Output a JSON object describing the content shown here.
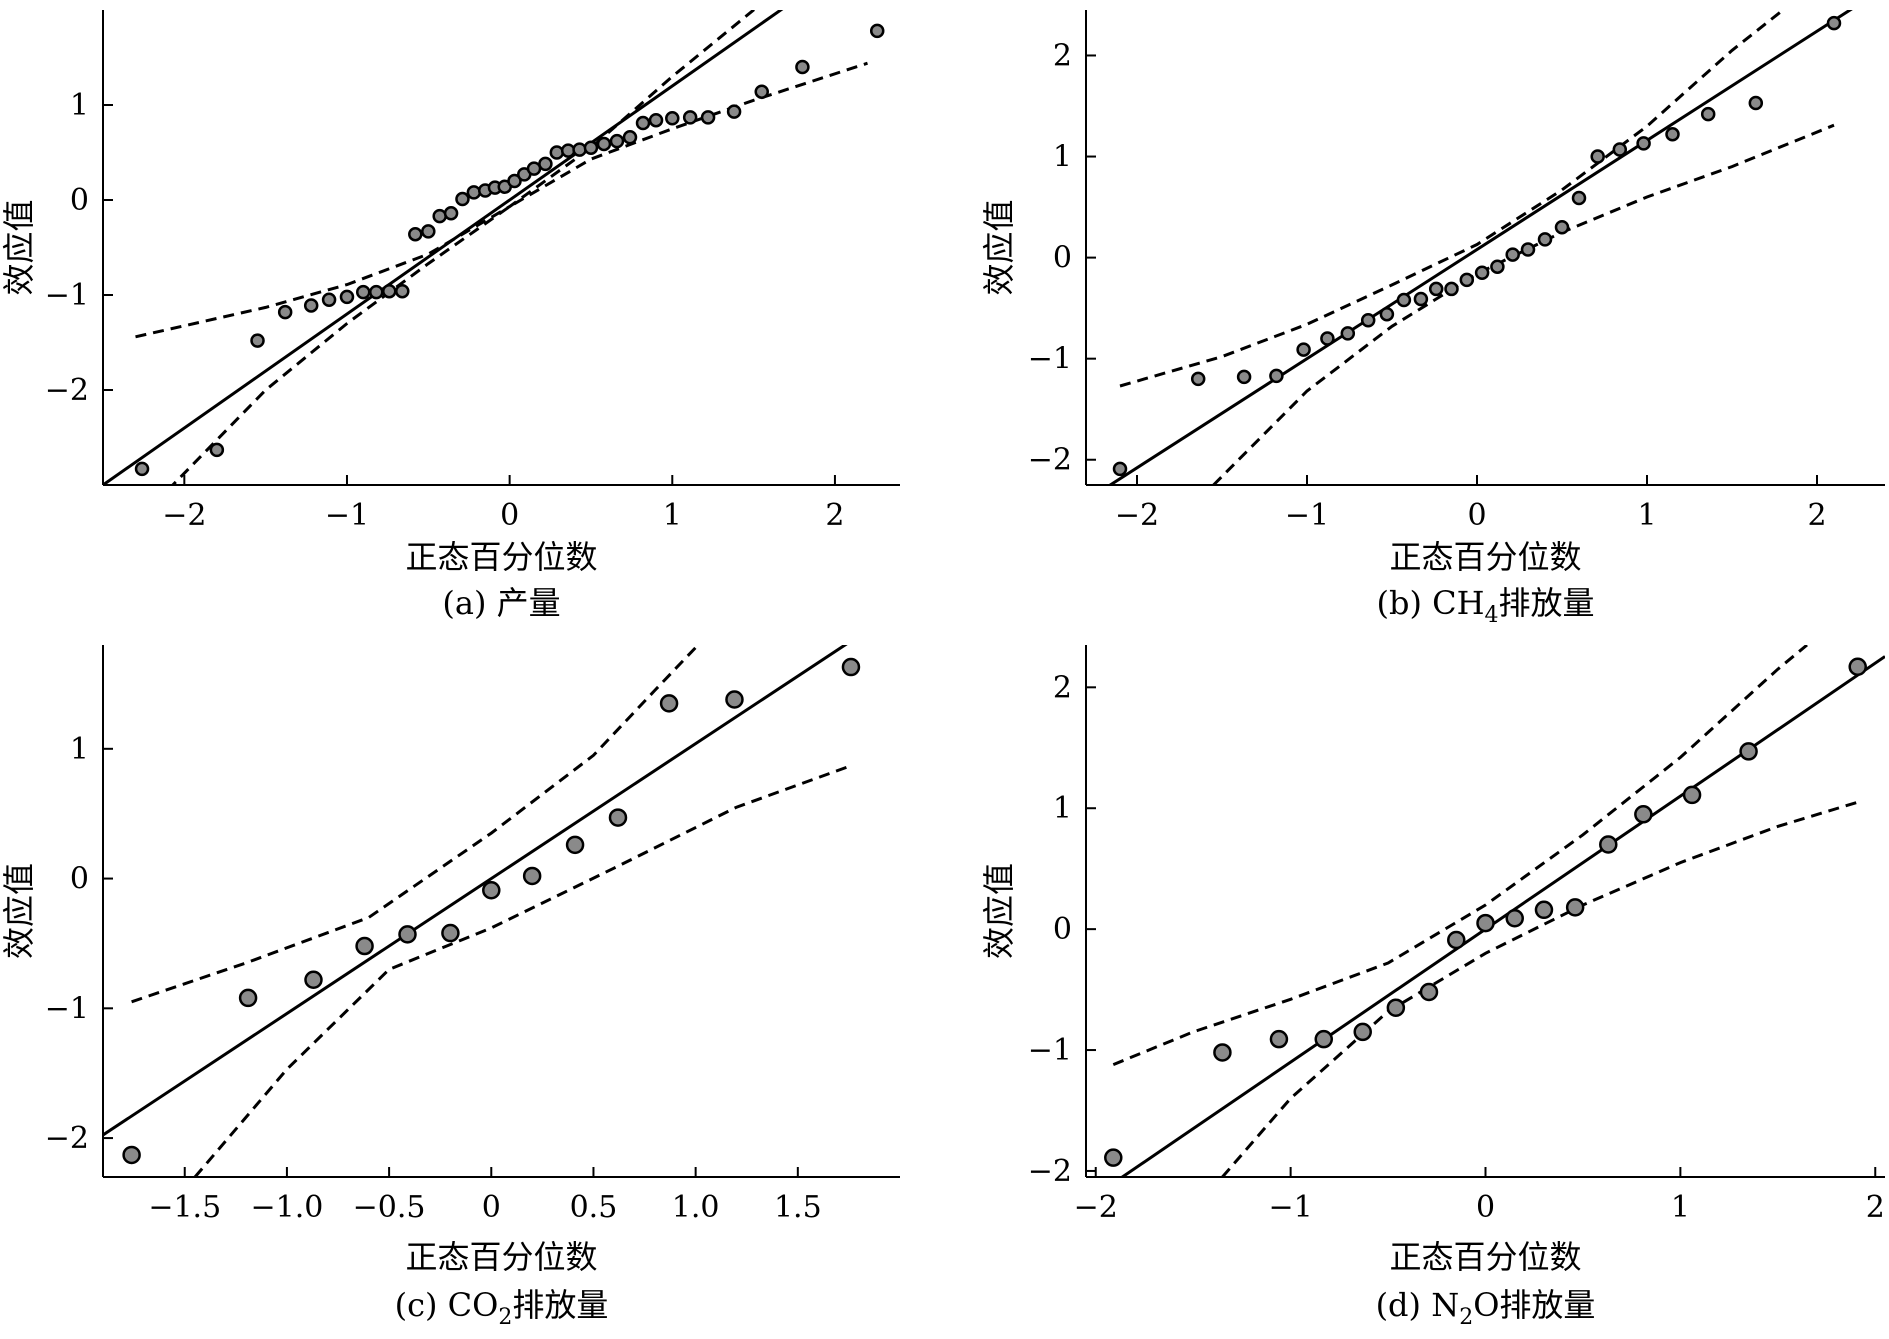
{
  "chart_data": [
    {
      "type": "scatter",
      "caption": "(a) 产量",
      "xlabel": "正态百分位数",
      "ylabel": "效应值",
      "xlim": [
        -2.5,
        2.4
      ],
      "ylim": [
        -3.0,
        2.0
      ],
      "xticks": [
        -2,
        -1,
        0,
        1,
        2
      ],
      "yticks": [
        -2,
        -1,
        0,
        1
      ],
      "xtick_labels": [
        "−2",
        "−1",
        "0",
        "1",
        "2"
      ],
      "ytick_labels": [
        "−2",
        "−1",
        "0",
        "1"
      ],
      "points": [
        [
          -2.26,
          -2.83
        ],
        [
          -1.8,
          -2.63
        ],
        [
          -1.55,
          -1.48
        ],
        [
          -1.38,
          -1.18
        ],
        [
          -1.22,
          -1.11
        ],
        [
          -1.11,
          -1.05
        ],
        [
          -1.0,
          -1.02
        ],
        [
          -0.9,
          -0.97
        ],
        [
          -0.82,
          -0.97
        ],
        [
          -0.74,
          -0.96
        ],
        [
          -0.66,
          -0.96
        ],
        [
          -0.58,
          -0.36
        ],
        [
          -0.5,
          -0.33
        ],
        [
          -0.43,
          -0.17
        ],
        [
          -0.36,
          -0.14
        ],
        [
          -0.29,
          0.01
        ],
        [
          -0.22,
          0.08
        ],
        [
          -0.15,
          0.1
        ],
        [
          -0.09,
          0.13
        ],
        [
          -0.03,
          0.14
        ],
        [
          0.03,
          0.2
        ],
        [
          0.09,
          0.27
        ],
        [
          0.15,
          0.33
        ],
        [
          0.22,
          0.38
        ],
        [
          0.29,
          0.5
        ],
        [
          0.36,
          0.52
        ],
        [
          0.43,
          0.53
        ],
        [
          0.5,
          0.55
        ],
        [
          0.58,
          0.59
        ],
        [
          0.66,
          0.62
        ],
        [
          0.74,
          0.66
        ],
        [
          0.82,
          0.81
        ],
        [
          0.9,
          0.84
        ],
        [
          1.0,
          0.86
        ],
        [
          1.11,
          0.87
        ],
        [
          1.22,
          0.87
        ],
        [
          1.38,
          0.93
        ],
        [
          1.55,
          1.14
        ],
        [
          1.8,
          1.4
        ],
        [
          2.26,
          1.78
        ]
      ],
      "fit_line": {
        "slope": 1.2,
        "intercept": 0.0
      },
      "upper_band": [
        [
          -2.3,
          -1.44
        ],
        [
          -1.5,
          -1.13
        ],
        [
          -1.0,
          -0.89
        ],
        [
          -0.5,
          -0.57
        ],
        [
          0.0,
          -0.07
        ],
        [
          0.5,
          0.55
        ],
        [
          1.0,
          1.3
        ],
        [
          1.5,
          2.0
        ],
        [
          1.8,
          2.45
        ]
      ],
      "lower_band": [
        [
          -2.1,
          -3.05
        ],
        [
          -1.5,
          -2.0
        ],
        [
          -1.0,
          -1.3
        ],
        [
          -0.5,
          -0.67
        ],
        [
          0.0,
          -0.07
        ],
        [
          0.5,
          0.43
        ],
        [
          1.0,
          0.75
        ],
        [
          1.5,
          1.05
        ],
        [
          2.2,
          1.44
        ]
      ]
    },
    {
      "type": "scatter",
      "caption": "(b) CH",
      "caption_sub": "4",
      "caption_tail": "排放量",
      "xlabel": "正态百分位数",
      "ylabel": "效应值",
      "xlim": [
        -2.3,
        2.4
      ],
      "ylim": [
        -2.25,
        2.45
      ],
      "xticks": [
        -2,
        -1,
        0,
        1,
        2
      ],
      "yticks": [
        -2,
        -1,
        0,
        1,
        2
      ],
      "xtick_labels": [
        "−2",
        "−1",
        "0",
        "1",
        "2"
      ],
      "ytick_labels": [
        "−2",
        "−1",
        "0",
        "1",
        "2"
      ],
      "points": [
        [
          -2.1,
          -2.09
        ],
        [
          -1.64,
          -1.2
        ],
        [
          -1.37,
          -1.18
        ],
        [
          -1.18,
          -1.17
        ],
        [
          -1.02,
          -0.91
        ],
        [
          -0.88,
          -0.8
        ],
        [
          -0.76,
          -0.75
        ],
        [
          -0.64,
          -0.62
        ],
        [
          -0.53,
          -0.56
        ],
        [
          -0.43,
          -0.42
        ],
        [
          -0.33,
          -0.41
        ],
        [
          -0.24,
          -0.31
        ],
        [
          -0.15,
          -0.31
        ],
        [
          -0.06,
          -0.22
        ],
        [
          0.03,
          -0.15
        ],
        [
          0.12,
          -0.09
        ],
        [
          0.21,
          0.03
        ],
        [
          0.3,
          0.08
        ],
        [
          0.4,
          0.18
        ],
        [
          0.5,
          0.3
        ],
        [
          0.6,
          0.59
        ],
        [
          0.71,
          1.0
        ],
        [
          0.84,
          1.07
        ],
        [
          0.98,
          1.13
        ],
        [
          1.15,
          1.22
        ],
        [
          1.36,
          1.42
        ],
        [
          1.64,
          1.53
        ],
        [
          2.1,
          2.32
        ]
      ],
      "fit_line": {
        "slope": 1.08,
        "intercept": 0.08
      },
      "upper_band": [
        [
          -2.1,
          -1.27
        ],
        [
          -1.5,
          -0.98
        ],
        [
          -1.0,
          -0.66
        ],
        [
          -0.5,
          -0.27
        ],
        [
          0.0,
          0.13
        ],
        [
          0.5,
          0.67
        ],
        [
          1.0,
          1.3
        ],
        [
          1.5,
          2.05
        ],
        [
          1.8,
          2.45
        ]
      ],
      "lower_band": [
        [
          -1.55,
          -2.25
        ],
        [
          -1.0,
          -1.32
        ],
        [
          -0.5,
          -0.68
        ],
        [
          0.0,
          -0.16
        ],
        [
          0.5,
          0.25
        ],
        [
          1.0,
          0.6
        ],
        [
          1.5,
          0.9
        ],
        [
          2.1,
          1.31
        ]
      ]
    },
    {
      "type": "scatter",
      "caption": "(c) CO",
      "caption_sub": "2",
      "caption_tail": "排放量",
      "xlabel": "正态百分位数",
      "ylabel": "效应值",
      "xlim": [
        -1.9,
        2.0
      ],
      "ylim": [
        -2.3,
        1.8
      ],
      "xticks": [
        -1.5,
        -1.0,
        -0.5,
        0,
        0.5,
        1.0,
        1.5
      ],
      "yticks": [
        -2,
        -1,
        0,
        1
      ],
      "xtick_labels": [
        "−1.5",
        "−1.0",
        "−0.5",
        "0",
        "0.5",
        "1.0",
        "1.5"
      ],
      "ytick_labels": [
        "−2",
        "−1",
        "0",
        "1"
      ],
      "points": [
        [
          -1.76,
          -2.13
        ],
        [
          -1.19,
          -0.92
        ],
        [
          -0.87,
          -0.78
        ],
        [
          -0.62,
          -0.52
        ],
        [
          -0.41,
          -0.43
        ],
        [
          -0.2,
          -0.42
        ],
        [
          0.0,
          -0.09
        ],
        [
          0.2,
          0.02
        ],
        [
          0.41,
          0.26
        ],
        [
          0.62,
          0.47
        ],
        [
          0.87,
          1.35
        ],
        [
          1.19,
          1.38
        ],
        [
          1.76,
          1.63
        ]
      ],
      "fit_line": {
        "slope": 1.04,
        "intercept": 0.0
      },
      "upper_band": [
        [
          -1.76,
          -0.95
        ],
        [
          -1.2,
          -0.65
        ],
        [
          -0.6,
          -0.3
        ],
        [
          0.0,
          0.35
        ],
        [
          0.5,
          0.95
        ],
        [
          0.8,
          1.45
        ],
        [
          1.0,
          1.78
        ]
      ],
      "lower_band": [
        [
          -1.45,
          -2.3
        ],
        [
          -1.0,
          -1.47
        ],
        [
          -0.5,
          -0.7
        ],
        [
          0.0,
          -0.38
        ],
        [
          0.6,
          0.08
        ],
        [
          1.2,
          0.55
        ],
        [
          1.76,
          0.87
        ]
      ]
    },
    {
      "type": "scatter",
      "caption": "(d) N",
      "caption_sub": "2",
      "caption_tail": "O排放量",
      "xlabel": "正态百分位数",
      "ylabel": "效应值",
      "xlim": [
        -2.05,
        2.05
      ],
      "ylim": [
        -2.05,
        2.35
      ],
      "xticks": [
        -2,
        -1,
        0,
        1,
        2
      ],
      "yticks": [
        -2,
        -1,
        0,
        1,
        2
      ],
      "xtick_labels": [
        "−2",
        "−1",
        "0",
        "1",
        "2"
      ],
      "ytick_labels": [
        "−2",
        "−1",
        "0",
        "1",
        "2"
      ],
      "points": [
        [
          -1.91,
          -1.89
        ],
        [
          -1.35,
          -1.02
        ],
        [
          -1.06,
          -0.91
        ],
        [
          -0.83,
          -0.91
        ],
        [
          -0.63,
          -0.85
        ],
        [
          -0.46,
          -0.65
        ],
        [
          -0.29,
          -0.52
        ],
        [
          -0.15,
          -0.09
        ],
        [
          0.0,
          0.05
        ],
        [
          0.15,
          0.09
        ],
        [
          0.3,
          0.16
        ],
        [
          0.46,
          0.18
        ],
        [
          0.63,
          0.7
        ],
        [
          0.81,
          0.95
        ],
        [
          1.06,
          1.11
        ],
        [
          1.35,
          1.47
        ],
        [
          1.91,
          2.17
        ]
      ],
      "fit_line": {
        "slope": 1.1,
        "intercept": 0.0
      },
      "upper_band": [
        [
          -1.91,
          -1.12
        ],
        [
          -1.5,
          -0.85
        ],
        [
          -1.0,
          -0.58
        ],
        [
          -0.5,
          -0.28
        ],
        [
          0.0,
          0.2
        ],
        [
          0.5,
          0.78
        ],
        [
          1.0,
          1.42
        ],
        [
          1.5,
          2.15
        ],
        [
          1.65,
          2.35
        ]
      ],
      "lower_band": [
        [
          -1.35,
          -2.05
        ],
        [
          -1.0,
          -1.4
        ],
        [
          -0.5,
          -0.68
        ],
        [
          0.0,
          -0.2
        ],
        [
          0.5,
          0.2
        ],
        [
          1.0,
          0.55
        ],
        [
          1.5,
          0.85
        ],
        [
          1.91,
          1.05
        ]
      ]
    }
  ]
}
